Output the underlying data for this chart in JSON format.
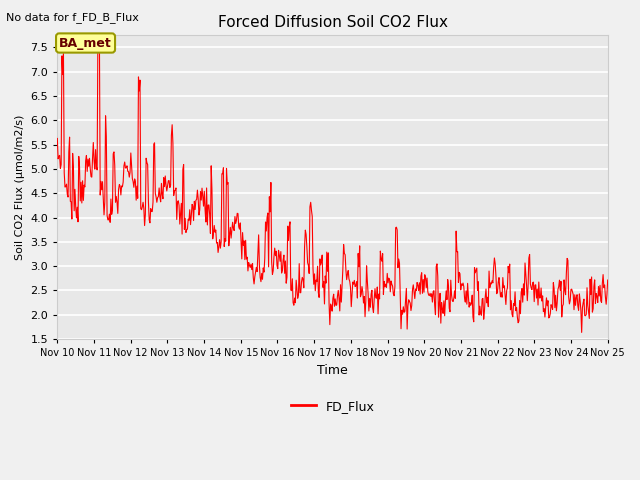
{
  "title": "Forced Diffusion Soil CO2 Flux",
  "xlabel": "Time",
  "ylabel": "Soil CO2 Flux (μmol/m2/s)",
  "top_left_text": "No data for f_FD_B_Flux",
  "legend_label": "FD_Flux",
  "line_color": "#ff0000",
  "plot_bg_color": "#e8e8e8",
  "fig_bg_color": "#f0f0f0",
  "ylim": [
    1.5,
    7.75
  ],
  "yticks": [
    1.5,
    2.0,
    2.5,
    3.0,
    3.5,
    4.0,
    4.5,
    5.0,
    5.5,
    6.0,
    6.5,
    7.0,
    7.5
  ],
  "box_label": "BA_met",
  "box_facecolor": "#ffff99",
  "box_edgecolor": "#999900",
  "xtick_labels": [
    "Nov 10",
    "Nov 11",
    "Nov 12",
    "Nov 13",
    "Nov 14",
    "Nov 15",
    "Nov 16",
    "Nov 17",
    "Nov 18",
    "Nov 19",
    "Nov 20",
    "Nov 21",
    "Nov 22",
    "Nov 23",
    "Nov 24",
    "Nov 25"
  ],
  "grid_color": "#ffffff",
  "spine_color": "#cccccc"
}
